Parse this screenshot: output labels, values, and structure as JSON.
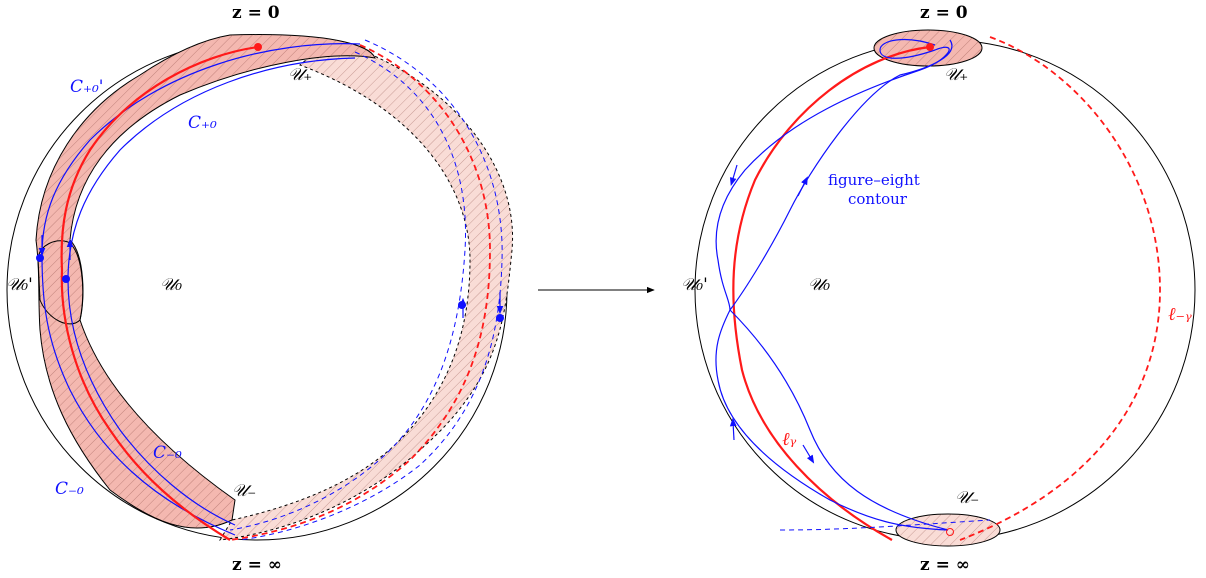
{
  "left_panel": {
    "top_label": "z = 0",
    "bottom_label": "z = ∞",
    "region_labels": {
      "u_plus": "𝒰₊",
      "u_minus": "𝒰₋",
      "u_zero": "𝒰₀",
      "u_zero_prime": "𝒰₀'"
    },
    "contour_labels": {
      "c_plus_prime": "C₊₀'",
      "c_plus": "C₊₀",
      "c_minus": "C₋₀",
      "c_minus_prime": "C₋₀"
    }
  },
  "right_panel": {
    "top_label": "z = 0",
    "bottom_label": "z = ∞",
    "region_labels": {
      "u_plus": "𝒰₊",
      "u_minus": "𝒰₋",
      "u_zero": "𝒰₀",
      "u_zero_prime": "𝒰₀'"
    },
    "figure_eight_line1": "figure–eight",
    "figure_eight_line2": "contour",
    "curve_labels": {
      "l_gamma": "ℓᵧ",
      "l_minus_gamma": "ℓ₋ᵧ"
    }
  },
  "colors": {
    "red": "#ff1a1a",
    "blue": "#1010ff",
    "band_fill": "#f4b8b0",
    "band_fill_light": "#f9dcd6",
    "hatch": "#8a4a44"
  }
}
